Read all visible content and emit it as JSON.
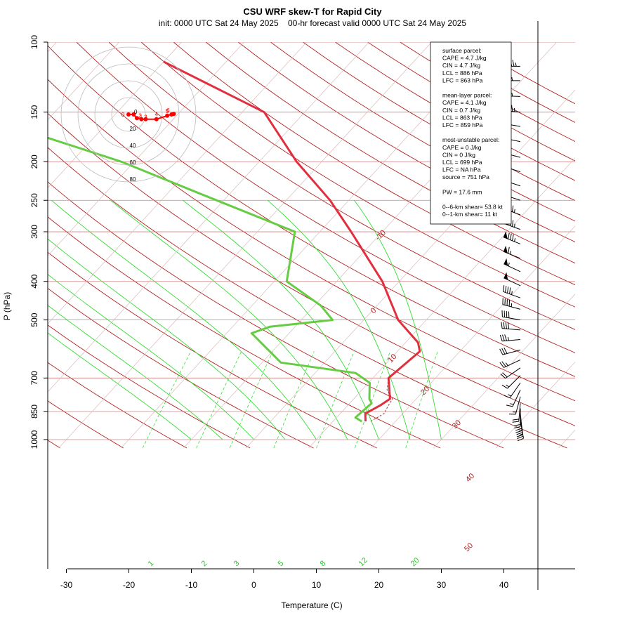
{
  "title": "CSU WRF skew-T for Rapid City",
  "subtitle": "init: 0000 UTC Sat 24 May 2025    00-hr forecast valid 0000 UTC Sat 24 May 2025",
  "chart_data": {
    "type": "line",
    "xlabel": "Temperature (C)",
    "ylabel": "P (hPa)",
    "xlim": [
      -33,
      51
    ],
    "ylim": [
      1050,
      100
    ],
    "y_log_scale": true,
    "x_ticks": [
      -30,
      -20,
      -10,
      0,
      10,
      20,
      30,
      40
    ],
    "y_ticks": [
      100,
      150,
      200,
      250,
      300,
      400,
      500,
      700,
      850,
      1000
    ],
    "isotherm_labels": [
      -10,
      0,
      10,
      20,
      30,
      40,
      50
    ],
    "mixing_ratio_labels": [
      "1",
      "2",
      "3",
      "5",
      "8",
      "12",
      "20"
    ],
    "series": [
      {
        "color": "#e03040",
        "points": [
          [
            15.2,
            900
          ],
          [
            14,
            860
          ],
          [
            15.2,
            820
          ],
          [
            15.8,
            790
          ],
          [
            12.5,
            700
          ],
          [
            13.6,
            600
          ],
          [
            12,
            570
          ],
          [
            5.5,
            500
          ],
          [
            -2.7,
            400
          ],
          [
            -15,
            300
          ],
          [
            -23,
            250
          ],
          [
            -34,
            200
          ],
          [
            -46.5,
            150
          ],
          [
            -70,
            112
          ]
        ]
      },
      {
        "color": "#66cc44",
        "points": [
          [
            14.6,
            900
          ],
          [
            13,
            880
          ],
          [
            13.5,
            810
          ],
          [
            12.5,
            790
          ],
          [
            10.2,
            720
          ],
          [
            6.5,
            680
          ],
          [
            -7,
            640
          ],
          [
            -16,
            540
          ],
          [
            -14,
            520
          ],
          [
            -5,
            500
          ],
          [
            -9,
            460
          ],
          [
            -18,
            400
          ],
          [
            -24,
            300
          ],
          [
            -45,
            240
          ],
          [
            -62,
            200
          ],
          [
            -80,
            170
          ]
        ]
      }
    ],
    "hodograph": {
      "ring_labels": [
        "20",
        "40",
        "60",
        "80"
      ],
      "height_labels": [
        "0",
        "0",
        "1",
        "2",
        "3",
        "4",
        "5",
        "6"
      ],
      "points": [
        [
          0,
          0
        ],
        [
          2.8,
          0
        ],
        [
          4.6,
          -3.3
        ],
        [
          7.1,
          -4.2
        ],
        [
          9.4,
          -4.2
        ],
        [
          15.3,
          -4.2
        ],
        [
          21.2,
          -1.1
        ],
        [
          23.6,
          0
        ],
        [
          24.8,
          0.5
        ]
      ]
    },
    "wind_barbs": [
      {
        "p": 115,
        "dir": 270,
        "spd": 95
      },
      {
        "p": 125,
        "dir": 270,
        "spd": 105
      },
      {
        "p": 137,
        "dir": 272,
        "spd": 105
      },
      {
        "p": 150,
        "dir": 275,
        "spd": 115
      },
      {
        "p": 163,
        "dir": 280,
        "spd": 60
      },
      {
        "p": 178,
        "dir": 282,
        "spd": 60
      },
      {
        "p": 195,
        "dir": 285,
        "spd": 65
      },
      {
        "p": 212,
        "dir": 288,
        "spd": 65
      },
      {
        "p": 230,
        "dir": 288,
        "spd": 65
      },
      {
        "p": 250,
        "dir": 288,
        "spd": 60
      },
      {
        "p": 272,
        "dir": 290,
        "spd": 85
      },
      {
        "p": 296,
        "dir": 290,
        "spd": 85
      },
      {
        "p": 322,
        "dir": 292,
        "spd": 85
      },
      {
        "p": 350,
        "dir": 292,
        "spd": 65
      },
      {
        "p": 378,
        "dir": 295,
        "spd": 55
      },
      {
        "p": 410,
        "dir": 295,
        "spd": 50
      },
      {
        "p": 440,
        "dir": 290,
        "spd": 45
      },
      {
        "p": 470,
        "dir": 285,
        "spd": 45
      },
      {
        "p": 500,
        "dir": 280,
        "spd": 40
      },
      {
        "p": 530,
        "dir": 275,
        "spd": 40
      },
      {
        "p": 560,
        "dir": 265,
        "spd": 35
      },
      {
        "p": 595,
        "dir": 255,
        "spd": 30
      },
      {
        "p": 630,
        "dir": 245,
        "spd": 25
      },
      {
        "p": 660,
        "dir": 235,
        "spd": 20
      },
      {
        "p": 690,
        "dir": 225,
        "spd": 15
      },
      {
        "p": 720,
        "dir": 215,
        "spd": 15
      },
      {
        "p": 750,
        "dir": 205,
        "spd": 15
      },
      {
        "p": 780,
        "dir": 195,
        "spd": 15
      },
      {
        "p": 810,
        "dir": 185,
        "spd": 20
      },
      {
        "p": 835,
        "dir": 180,
        "spd": 20
      },
      {
        "p": 855,
        "dir": 175,
        "spd": 20
      },
      {
        "p": 875,
        "dir": 172,
        "spd": 25
      },
      {
        "p": 895,
        "dir": 170,
        "spd": 25
      }
    ]
  },
  "info_box": [
    "surface parcel:",
    "CAPE = 4.7 J/kg",
    "CIN = 4.7 J/kg",
    "LCL = 886 hPa",
    "LFC = 863 hPa",
    "",
    "mean-layer parcel:",
    "CAPE = 4.1 J/kg",
    "CIN = 0.7 J/kg",
    "LCL = 863 hPa",
    "LFC = 859 hPa",
    "",
    "most-unstable parcel:",
    "CAPE = 0 J/kg",
    "CIN = 0 J/kg",
    "LCL = 699 hPa",
    "LFC = NA hPa",
    "source = 751 hPa",
    "",
    "PW =  17.6 mm",
    "",
    "0--6-km shear= 53.8 kt",
    "0--1-km shear= 11 kt"
  ]
}
